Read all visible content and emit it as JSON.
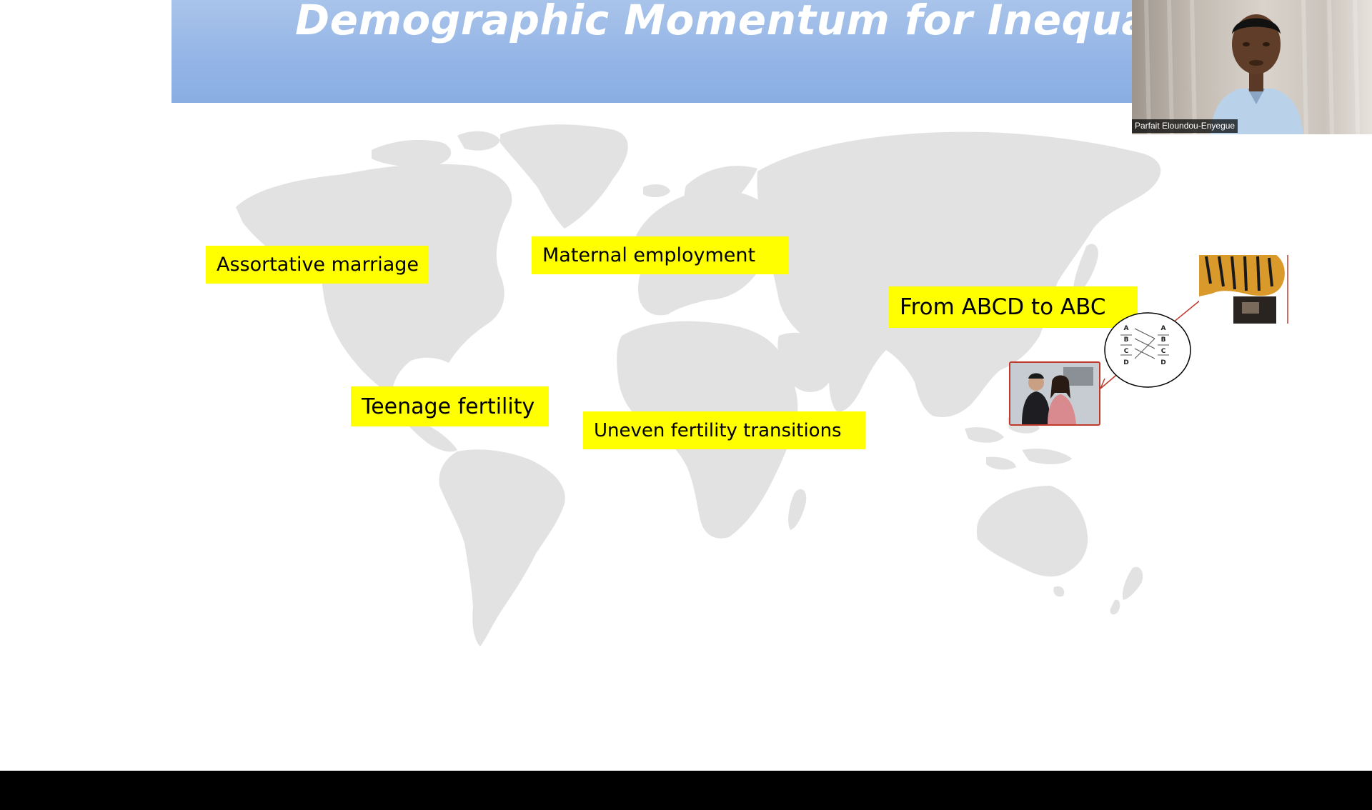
{
  "slide": {
    "title": "Demographic Momentum for Inequality",
    "labels": {
      "assortative_marriage": "Assortative marriage",
      "maternal_employment": "Maternal employment",
      "abcd_to_abc": "From ABCD to ABC",
      "teenage_fertility": "Teenage fertility",
      "uneven_fertility_transitions": "Uneven fertility transitions"
    },
    "diagram_letters": {
      "left": [
        "A",
        "B",
        "C",
        "D"
      ],
      "right": [
        "A",
        "B",
        "C",
        "D"
      ]
    }
  },
  "video": {
    "participant_name": "Parfait Eloundou-Enyegue"
  },
  "colors": {
    "title_bar": "#93b4e6",
    "label_highlight": "#ffff00",
    "map_fill": "#e0e0e0",
    "annotation_red": "#c0392b"
  },
  "icons": [
    "world-map-image",
    "couple-photo-image",
    "tiger-photo-image",
    "webcam-video"
  ]
}
